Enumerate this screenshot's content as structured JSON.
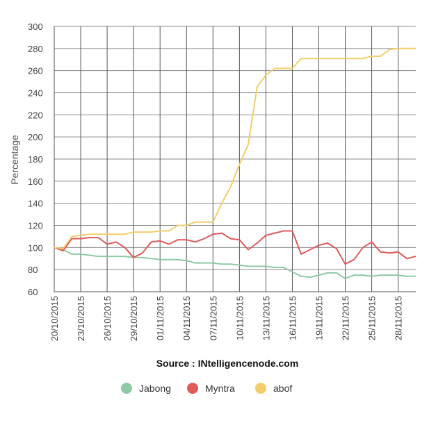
{
  "chart_data": {
    "type": "line",
    "title": "",
    "xlabel": "",
    "ylabel": "Percentage",
    "ylim": [
      60,
      300
    ],
    "yticks": [
      60,
      80,
      100,
      120,
      140,
      160,
      180,
      200,
      220,
      240,
      260,
      280,
      300
    ],
    "grid": true,
    "legend_position": "bottom",
    "x": [
      "20/10/2015",
      "21/10/2015",
      "22/10/2015",
      "23/10/2015",
      "24/10/2015",
      "25/10/2015",
      "26/10/2015",
      "27/10/2015",
      "28/10/2015",
      "29/10/2015",
      "30/10/2015",
      "31/10/2015",
      "01/11/2015",
      "02/11/2015",
      "03/11/2015",
      "04/11/2015",
      "05/11/2015",
      "06/11/2015",
      "07/11/2015",
      "08/11/2015",
      "09/11/2015",
      "10/11/2015",
      "11/11/2015",
      "12/11/2015",
      "13/11/2015",
      "14/11/2015",
      "15/11/2015",
      "16/11/2015",
      "17/11/2015",
      "18/11/2015",
      "19/11/2015",
      "20/11/2015",
      "21/11/2015",
      "22/11/2015",
      "23/11/2015",
      "24/11/2015",
      "25/11/2015",
      "26/11/2015",
      "27/11/2015",
      "28/11/2015",
      "29/11/2015",
      "30/11/2015"
    ],
    "xtick_labels": [
      "20/10/2015",
      "23/10/2015",
      "26/10/2015",
      "29/10/2015",
      "01/11/2015",
      "04/11/2015",
      "07/11/2015",
      "10/11/2015",
      "13/11/2015",
      "16/11/2015",
      "19/11/2015",
      "22/11/2015",
      "25/11/2015",
      "28/11/2015"
    ],
    "series": [
      {
        "name": "Jabong",
        "color": "#8fc9a6",
        "values": [
          100,
          98,
          94,
          94,
          93,
          92,
          92,
          92,
          92,
          91,
          91,
          90,
          89,
          89,
          89,
          88,
          86,
          86,
          86,
          85,
          85,
          84,
          83,
          83,
          83,
          82,
          82,
          78,
          74,
          73,
          75,
          77,
          77,
          72,
          75,
          75,
          74,
          75,
          75,
          75,
          74,
          74
        ]
      },
      {
        "name": "Myntra",
        "color": "#e05a5a",
        "values": [
          100,
          97,
          108,
          108,
          109,
          109,
          103,
          105,
          100,
          91,
          95,
          105,
          106,
          103,
          107,
          107,
          105,
          108,
          112,
          113,
          108,
          107,
          98,
          104,
          111,
          113,
          115,
          115,
          94,
          98,
          102,
          104,
          99,
          85,
          89,
          100,
          105,
          96,
          95,
          96,
          90,
          92
        ]
      },
      {
        "name": "abof",
        "color": "#f2cd6b",
        "values": [
          100,
          99,
          110,
          111,
          112,
          112,
          112,
          112,
          112,
          114,
          114,
          114,
          115,
          115,
          120,
          120,
          123,
          123,
          123,
          140,
          155,
          175,
          193,
          245,
          256,
          262,
          262,
          262,
          271,
          271,
          271,
          271,
          271,
          271,
          271,
          271,
          273,
          273,
          279,
          280,
          280,
          280
        ]
      }
    ]
  },
  "source": {
    "text": "Source : INtelligencenode.com"
  }
}
